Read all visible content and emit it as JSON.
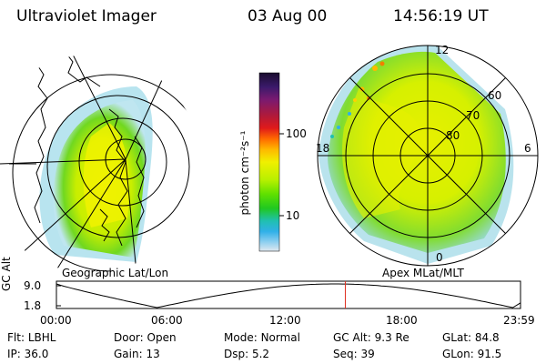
{
  "header": {
    "instrument": "Ultraviolet Imager",
    "date": "03 Aug 00",
    "time": "14:56:19 UT"
  },
  "colorbar": {
    "label": "photon cm⁻²s⁻¹",
    "ticks": [
      {
        "value": 100,
        "label": "100"
      },
      {
        "value": 10,
        "label": "10"
      }
    ],
    "scale": "log",
    "colors_top_to_bottom": [
      "#1a0d2e",
      "#3b1a6b",
      "#7a1a70",
      "#b01a3a",
      "#e01a1a",
      "#ff6a00",
      "#ffb800",
      "#f0f000",
      "#b8f000",
      "#60e000",
      "#20c820",
      "#20c0b0",
      "#30b0e8",
      "#90d0f0",
      "#e0e8f0"
    ]
  },
  "left_map": {
    "label": "Geographic Lat/Lon",
    "accent": "#f0f000"
  },
  "right_map": {
    "label": "Apex MLat/MLT",
    "ring_labels": [
      "60",
      "70",
      "80"
    ],
    "mlt_labels": {
      "top": "12",
      "left": "18",
      "right": "6",
      "bottom": "0"
    }
  },
  "altitude_plot": {
    "axis_title": "GC Alt",
    "y_ticks": [
      "9.0",
      "1.8"
    ],
    "x_ticks": [
      "00:00",
      "06:00",
      "12:00",
      "18:00",
      "23:59"
    ],
    "marker_color": "#e03020",
    "marker_hour": 14.94
  },
  "status": {
    "row1": [
      {
        "key": "Flt:",
        "value": "LBHL"
      },
      {
        "key": "Door:",
        "value": "Open"
      },
      {
        "key": "Mode:",
        "value": "Normal"
      },
      {
        "key": "GC Alt:",
        "value": "9.3 Re"
      },
      {
        "key": "GLat:",
        "value": "84.8"
      }
    ],
    "row2": [
      {
        "key": "IP:",
        "value": "36.0"
      },
      {
        "key": "Gain:",
        "value": "13"
      },
      {
        "key": "Dsp:",
        "value": "5.2"
      },
      {
        "key": "Seq:",
        "value": "39"
      },
      {
        "key": "GLon:",
        "value": "91.5"
      }
    ]
  }
}
